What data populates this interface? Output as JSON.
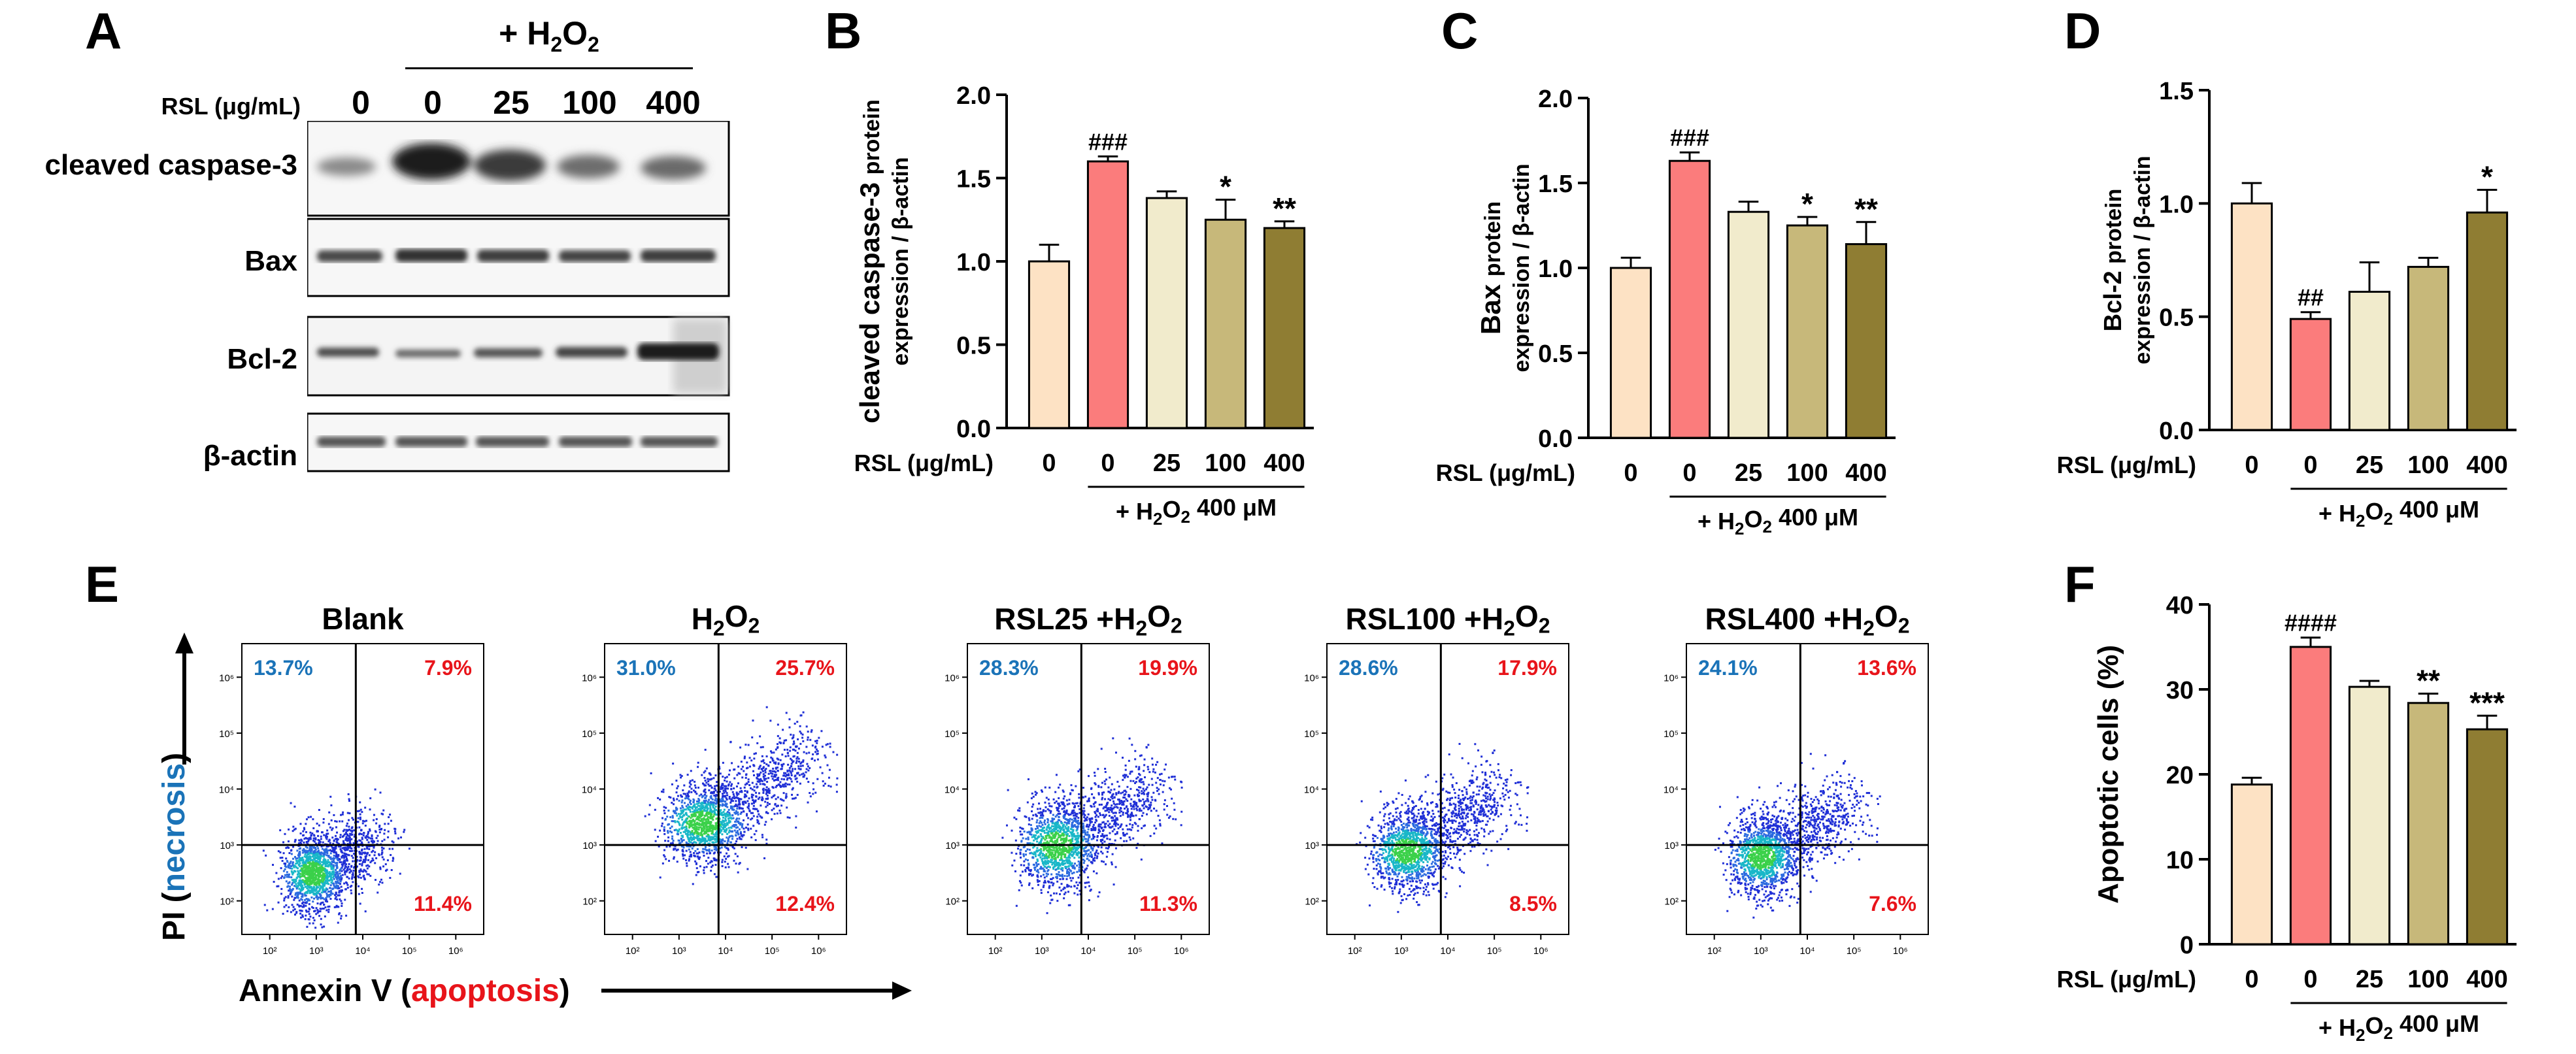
{
  "panels": {
    "A": "A",
    "B": "B",
    "C": "C",
    "D": "D",
    "E": "E",
    "F": "F"
  },
  "colors": {
    "c0": "#fde2c4",
    "c1": "#fb7c7c",
    "c2": "#f1ebcc",
    "c3": "#c7b87a",
    "c4": "#8f7d33",
    "blue": "#1a73b8",
    "red": "#e8141a"
  },
  "western": {
    "treatment": "+ H2O2",
    "rsl_label": "RSL (μg/mL)",
    "doses": [
      "0",
      "0",
      "25",
      "100",
      "400"
    ],
    "bands": [
      "cleaved caspase-3",
      "Bax",
      "Bcl-2",
      "β-actin"
    ]
  },
  "bar_axis": {
    "rsl_label": "RSL (μg/mL)",
    "h2o2_label": "+ H2O2 400 μM",
    "doses": [
      "0",
      "0",
      "25",
      "100",
      "400"
    ]
  },
  "chart_data": [
    {
      "id": "B",
      "type": "bar",
      "ylabel_main": "cleaved caspase-3",
      "ylabel_sub1": "protein",
      "ylabel_sub2": "expression / β-actin",
      "categories": [
        "0",
        "0",
        "25",
        "100",
        "400"
      ],
      "values": [
        1.0,
        1.6,
        1.38,
        1.25,
        1.2
      ],
      "errors": [
        0.1,
        0.03,
        0.04,
        0.12,
        0.04
      ],
      "annotations": [
        "",
        "###",
        "",
        "*",
        "**"
      ],
      "ylim": [
        0,
        2.0
      ],
      "yticks": [
        "0.0",
        "0.5",
        "1.0",
        "1.5",
        "2.0"
      ]
    },
    {
      "id": "C",
      "type": "bar",
      "ylabel_main": "Bax",
      "ylabel_sub1": "protein",
      "ylabel_sub2": "expression / β-actin",
      "categories": [
        "0",
        "0",
        "25",
        "100",
        "400"
      ],
      "values": [
        1.0,
        1.63,
        1.33,
        1.25,
        1.14
      ],
      "errors": [
        0.06,
        0.05,
        0.06,
        0.05,
        0.13
      ],
      "annotations": [
        "",
        "###",
        "",
        "*",
        "**"
      ],
      "ylim": [
        0,
        2.0
      ],
      "yticks": [
        "0.0",
        "0.5",
        "1.0",
        "1.5",
        "2.0"
      ]
    },
    {
      "id": "D",
      "type": "bar",
      "ylabel_main": "Bcl-2",
      "ylabel_sub1": "protein",
      "ylabel_sub2": "expression / β-actin",
      "categories": [
        "0",
        "0",
        "25",
        "100",
        "400"
      ],
      "values": [
        1.0,
        0.49,
        0.61,
        0.72,
        0.96
      ],
      "errors": [
        0.09,
        0.03,
        0.13,
        0.04,
        0.1
      ],
      "annotations": [
        "",
        "##",
        "",
        "",
        "*"
      ],
      "ylim": [
        0,
        1.5
      ],
      "yticks": [
        "0.0",
        "0.5",
        "1.0",
        "1.5"
      ]
    },
    {
      "id": "F",
      "type": "bar",
      "ylabel_main": "Apoptotic cells (%)",
      "ylabel_sub1": "",
      "ylabel_sub2": "",
      "categories": [
        "0",
        "0",
        "25",
        "100",
        "400"
      ],
      "values": [
        18.8,
        35.0,
        30.3,
        28.4,
        25.3
      ],
      "errors": [
        0.8,
        1.1,
        0.7,
        1.1,
        1.6
      ],
      "annotations": [
        "",
        "####",
        "",
        "**",
        "***"
      ],
      "ylim": [
        0,
        40
      ],
      "yticks": [
        "0",
        "10",
        "20",
        "30",
        "40"
      ]
    },
    {
      "id": "E",
      "type": "scatter",
      "xlabel_main": "Annexin V",
      "xlabel_paren": "apoptosis",
      "ylabel_main": "PI",
      "ylabel_paren": "necrosis",
      "plots": [
        {
          "title_pre": "Blank",
          "title_post": "",
          "ul": "13.7%",
          "ur": "7.9%",
          "lr": "11.4%",
          "center": [
            2.9,
            2.5
          ],
          "spread": [
            0.55,
            0.45
          ],
          "tail": [
            0.0,
            0.0
          ]
        },
        {
          "title_pre": "H2O2",
          "title_post": "",
          "ul": "31.0%",
          "ur": "25.7%",
          "lr": "12.4%",
          "center": [
            3.5,
            3.4
          ],
          "spread": [
            0.75,
            0.45
          ],
          "tail": [
            1.0,
            0.7
          ]
        },
        {
          "title_pre": "RSL25 +H2O2",
          "title_post": "",
          "ul": "28.3%",
          "ur": "19.9%",
          "lr": "11.3%",
          "center": [
            3.3,
            3.0
          ],
          "spread": [
            0.7,
            0.5
          ],
          "tail": [
            0.8,
            0.5
          ]
        },
        {
          "title_pre": "RSL100 +H2O2",
          "title_post": "",
          "ul": "28.6%",
          "ur": "17.9%",
          "lr": "8.5%",
          "center": [
            3.1,
            2.9
          ],
          "spread": [
            0.65,
            0.45
          ],
          "tail": [
            0.7,
            0.5
          ]
        },
        {
          "title_pre": "RSL400 +H2O2",
          "title_post": "",
          "ul": "24.1%",
          "ur": "13.6%",
          "lr": "7.6%",
          "center": [
            3.0,
            2.8
          ],
          "spread": [
            0.6,
            0.45
          ],
          "tail": [
            0.6,
            0.4
          ]
        }
      ],
      "xticks": [
        "10²",
        "10³",
        "10⁴",
        "10⁵",
        "10⁶"
      ],
      "yticks": [
        "10⁶",
        "10⁵",
        "10⁴",
        "10³",
        "10²"
      ]
    }
  ]
}
